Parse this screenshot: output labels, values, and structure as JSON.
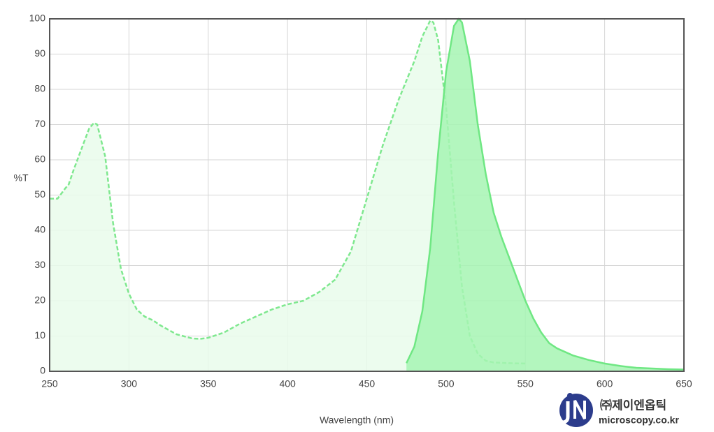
{
  "chart_data": {
    "type": "area",
    "x_label": "Wavelength (nm)",
    "y_label": "%T",
    "xlim": [
      250,
      650
    ],
    "xticks": [
      250,
      300,
      350,
      400,
      450,
      500,
      550,
      600,
      650
    ],
    "ylim": [
      0,
      100
    ],
    "yticks": [
      0,
      10,
      20,
      30,
      40,
      50,
      60,
      70,
      80,
      90,
      100
    ],
    "grid": true,
    "series": [
      {
        "color": "#7fe88f",
        "fill": "#e9fbeb",
        "dashed": true,
        "x": [
          250,
          255,
          260,
          262,
          265,
          270,
          275,
          278,
          280,
          285,
          290,
          295,
          300,
          305,
          310,
          315,
          320,
          330,
          340,
          345,
          350,
          360,
          370,
          380,
          390,
          400,
          410,
          420,
          430,
          440,
          450,
          460,
          470,
          480,
          485,
          490,
          492,
          495,
          500,
          505,
          510,
          515,
          520,
          525,
          530,
          540,
          550
        ],
        "values": [
          49,
          49,
          52,
          53,
          57,
          63,
          69,
          70.5,
          70,
          61,
          42,
          29,
          22,
          17.5,
          15.5,
          14.5,
          13,
          10.5,
          9.3,
          9.2,
          9.5,
          11,
          13.5,
          15.5,
          17.5,
          19,
          20,
          22.5,
          26,
          34,
          49,
          64,
          77,
          88,
          95,
          99.5,
          99,
          94,
          75,
          48,
          24,
          10,
          5,
          3,
          2.5,
          2.3,
          2.2
        ]
      },
      {
        "color": "#6fe783",
        "fill": "#a6f5b3",
        "dashed": false,
        "x": [
          475,
          480,
          485,
          490,
          495,
          500,
          505,
          508,
          510,
          515,
          520,
          525,
          530,
          535,
          540,
          545,
          550,
          555,
          560,
          565,
          570,
          580,
          590,
          600,
          610,
          620,
          630,
          640,
          650
        ],
        "values": [
          2.3,
          7,
          17,
          35,
          62,
          85,
          98,
          100,
          99,
          88,
          70,
          56,
          45,
          38,
          32,
          26,
          20,
          15,
          11,
          8,
          6.5,
          4.5,
          3.2,
          2.2,
          1.5,
          1,
          0.8,
          0.6,
          0.5
        ]
      }
    ]
  },
  "logo": {
    "name": "㈜제이엔옵틱",
    "url": "microscopy.co.kr"
  }
}
